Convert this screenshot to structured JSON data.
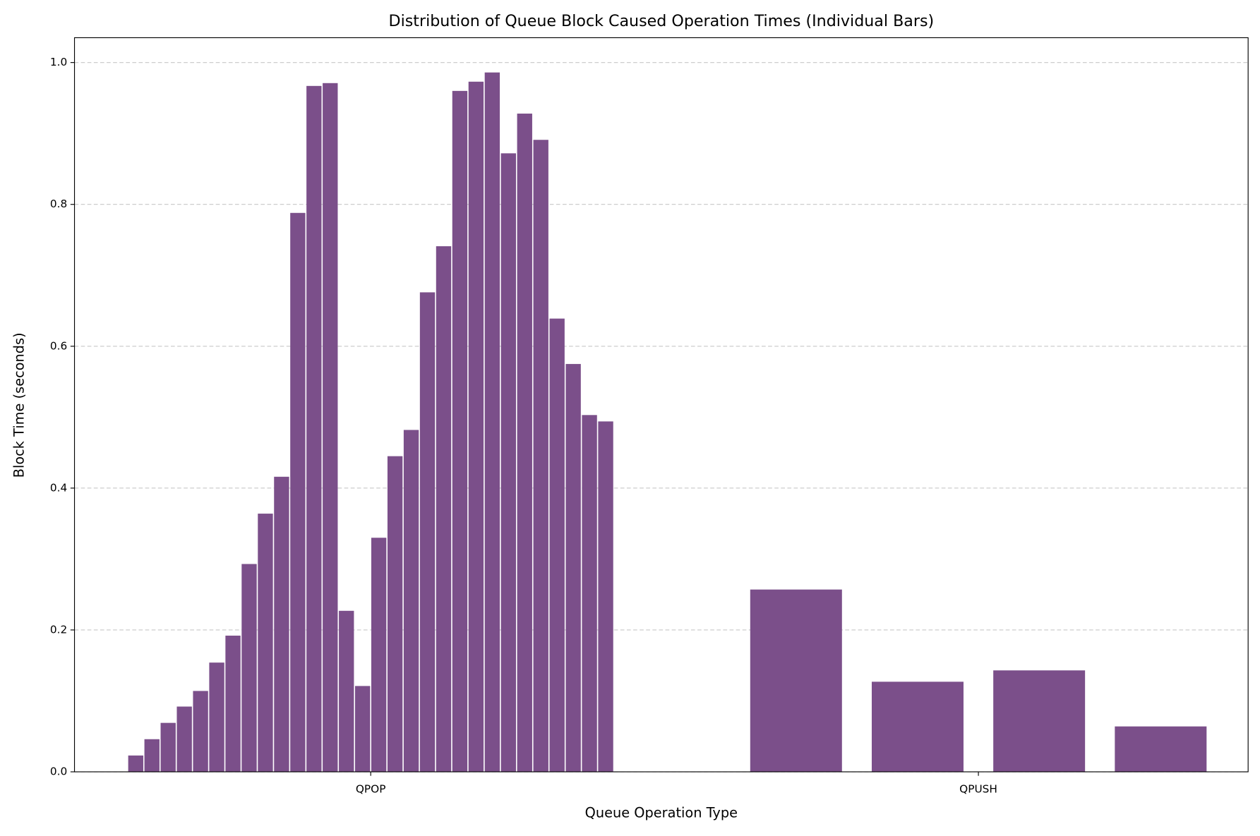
{
  "chart_data": {
    "type": "grouped_individual_bar",
    "title": "Distribution of Queue Block Caused Operation Times (Individual Bars)",
    "x_label": "Queue Operation Type",
    "y_label": "Block Time (seconds)",
    "categories": [
      "QPOP",
      "QPUSH"
    ],
    "values": [
      [
        0.023,
        0.046,
        0.069,
        0.092,
        0.114,
        0.154,
        0.192,
        0.293,
        0.364,
        0.416,
        0.788,
        0.967,
        0.971,
        0.227,
        0.121,
        0.33,
        0.445,
        0.482,
        0.676,
        0.741,
        0.96,
        0.973,
        0.986,
        0.872,
        0.928,
        0.891,
        0.639,
        0.575,
        0.503,
        0.494
      ],
      [
        0.257,
        0.127,
        0.143,
        0.064
      ]
    ],
    "color": "#7b4f8a",
    "ylim": [
      0,
      1.035
    ],
    "yticks": [
      {
        "value": 0,
        "label": "0.0"
      },
      0.2,
      0.4,
      0.6,
      0.8,
      {
        "value": 1,
        "label": "1.0"
      }
    ],
    "grid": true
  }
}
